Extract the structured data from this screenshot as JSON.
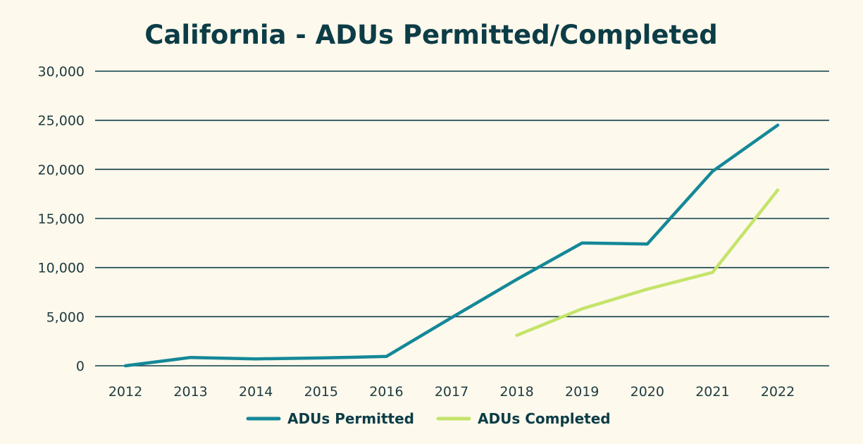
{
  "chart_data": {
    "type": "line",
    "title": "California - ADUs Permitted/Completed",
    "xlabel": "",
    "ylabel": "",
    "categories": [
      "2012",
      "2013",
      "2014",
      "2015",
      "2016",
      "2017",
      "2018",
      "2019",
      "2020",
      "2021",
      "2022"
    ],
    "ylim": [
      0,
      30000
    ],
    "yticks": [
      0,
      5000,
      10000,
      15000,
      20000,
      25000,
      30000
    ],
    "ytick_labels": [
      "0",
      "5,000",
      "10,000",
      "15,000",
      "20,000",
      "25,000",
      "30,000"
    ],
    "grid": "horizontal",
    "legend_position": "bottom",
    "series": [
      {
        "name": "ADUs Permitted",
        "color": "#148898",
        "values": [
          0,
          850,
          700,
          800,
          950,
          4900,
          8800,
          12500,
          12400,
          19800,
          24500
        ]
      },
      {
        "name": "ADUs Completed",
        "color": "#C4E46A",
        "values": [
          null,
          null,
          null,
          null,
          null,
          null,
          3100,
          5800,
          7800,
          9500,
          17900
        ]
      }
    ]
  }
}
